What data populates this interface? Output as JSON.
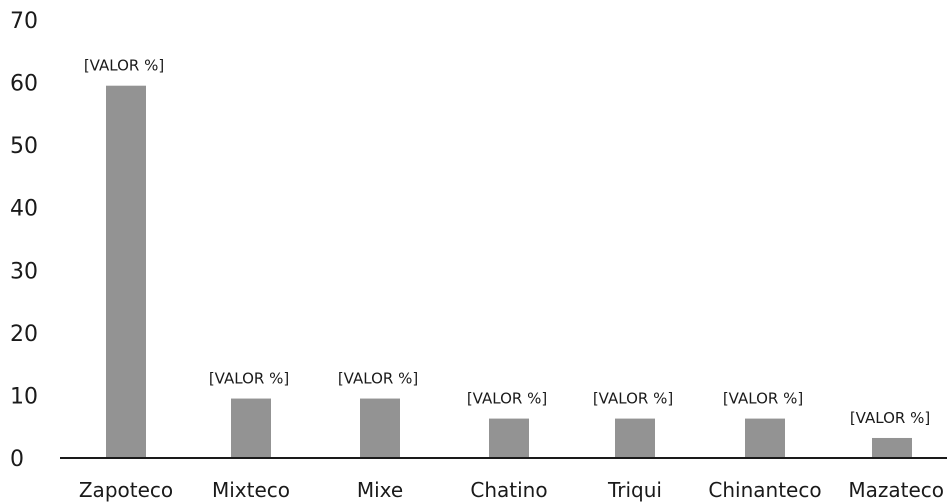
{
  "chart_data": {
    "type": "bar",
    "title": "",
    "xlabel": "",
    "ylabel": "",
    "categories": [
      "Zapoteco",
      "Mixteco",
      "Mixe",
      "Chatino",
      "Triqui",
      "Chinanteco",
      "Mazateco"
    ],
    "values": [
      59.5,
      9.5,
      9.5,
      6.3,
      6.3,
      6.3,
      3.2
    ],
    "data_labels": [
      "[VALOR %]",
      "[VALOR %]",
      "[VALOR %]",
      "[VALOR %]",
      "[VALOR %]",
      "[VALOR %]",
      "[VALOR %]"
    ],
    "ylim": [
      0,
      70
    ],
    "yticks": [
      0,
      10,
      20,
      30,
      40,
      50,
      60,
      70
    ],
    "grid": false,
    "legend": "none",
    "bar_color": "#939393",
    "axis_color": "#1a1a1a"
  }
}
